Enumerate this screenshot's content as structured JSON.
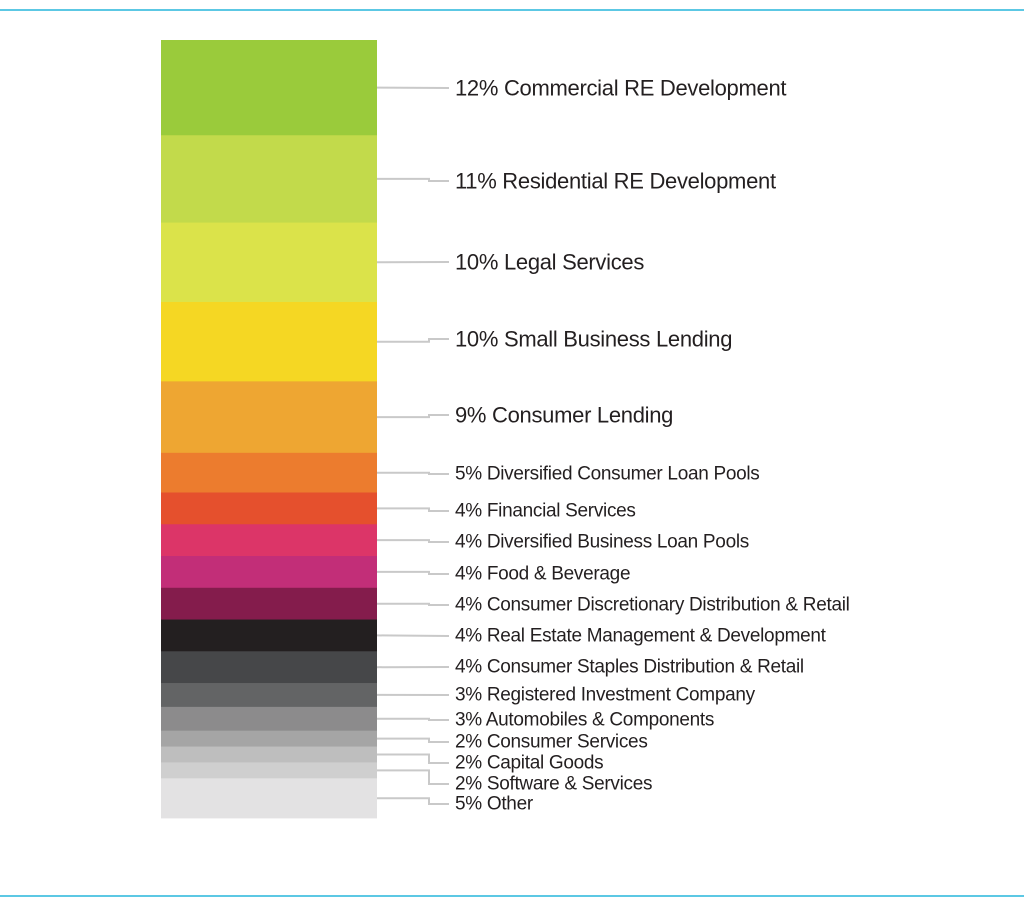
{
  "chart_data": {
    "type": "bar",
    "orientation": "stacked-vertical",
    "unit": "%",
    "legend": "right",
    "grid": false,
    "segments": [
      {
        "value": 12,
        "label": "12% Commercial RE Development",
        "color": "#9acb3b"
      },
      {
        "value": 11,
        "label": "11% Residential RE Development",
        "color": "#c2da4b"
      },
      {
        "value": 10,
        "label": "10% Legal Services",
        "color": "#dbe34a"
      },
      {
        "value": 10,
        "label": "10% Small Business Lending",
        "color": "#f5d723"
      },
      {
        "value": 9,
        "label": "9% Consumer Lending",
        "color": "#eea632"
      },
      {
        "value": 5,
        "label": "5% Diversified Consumer Loan Pools",
        "color": "#ec7c2e"
      },
      {
        "value": 4,
        "label": "4% Financial Services",
        "color": "#e5502d"
      },
      {
        "value": 4,
        "label": "4% Diversified Business Loan Pools",
        "color": "#dc3568"
      },
      {
        "value": 4,
        "label": "4% Food & Beverage",
        "color": "#c22e78"
      },
      {
        "value": 4,
        "label": "4% Consumer Discretionary Distribution & Retail",
        "color": "#841c4c"
      },
      {
        "value": 4,
        "label": "4% Real Estate Management & Development",
        "color": "#231f20"
      },
      {
        "value": 4,
        "label": "4% Consumer Staples Distribution & Retail",
        "color": "#464749"
      },
      {
        "value": 3,
        "label": "3% Registered Investment Company",
        "color": "#636465"
      },
      {
        "value": 3,
        "label": "3% Automobiles & Components",
        "color": "#8c8b8c"
      },
      {
        "value": 2,
        "label": "2% Consumer Services",
        "color": "#a5a5a5"
      },
      {
        "value": 2,
        "label": "2% Capital Goods",
        "color": "#bebebe"
      },
      {
        "value": 2,
        "label": "2% Software & Services",
        "color": "#cfcfcf"
      },
      {
        "value": 5,
        "label": "5% Other",
        "color": "#e3e2e3"
      }
    ]
  },
  "colors": {
    "rule": "#5cc8e4",
    "leader": "#c9c9c9",
    "text": "#231f20"
  }
}
